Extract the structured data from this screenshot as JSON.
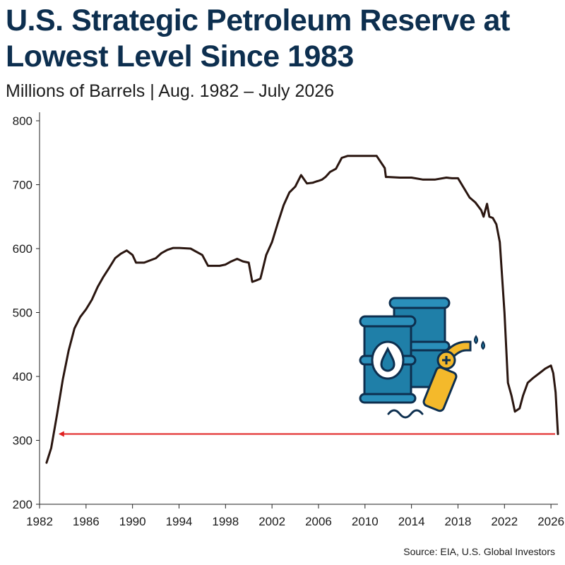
{
  "title": "U.S. Strategic Petroleum Reserve at Lowest Level Since 1983",
  "subtitle": "Millions of Barrels | Aug. 1982 – July 2026",
  "source": "Source: EIA, U.S. Global Investors",
  "colors": {
    "title": "#0d2f4f",
    "line": "#2a1610",
    "arrow": "#e01e1e",
    "icon_blue": "#1f7fa8",
    "icon_yellow": "#f4b92b",
    "icon_outline": "#0d2f4f"
  },
  "icons": [
    "oil-barrels-icon",
    "fuel-nozzle-icon"
  ],
  "chart_data": {
    "type": "line",
    "title": "U.S. Strategic Petroleum Reserve at Lowest Level Since 1983",
    "subtitle": "Millions of Barrels | Aug. 1982 – July 2026",
    "xlabel": "",
    "ylabel": "",
    "xlim": [
      1982,
      2026.6
    ],
    "ylim": [
      200,
      800
    ],
    "x_ticks": [
      1982,
      1986,
      1990,
      1994,
      1998,
      2002,
      2006,
      2010,
      2014,
      2018,
      2022,
      2026
    ],
    "y_ticks": [
      200,
      300,
      400,
      500,
      600,
      700,
      800
    ],
    "grid": false,
    "series": [
      {
        "x": [
          1982.6,
          1983.0,
          1983.5,
          1984.0,
          1984.5,
          1985.0,
          1985.5,
          1986.0,
          1986.5,
          1987.0,
          1987.5,
          1988.0,
          1988.5,
          1989.0,
          1989.5,
          1990.0,
          1990.3,
          1990.5,
          1991.0,
          1992.0,
          1992.5,
          1993.0,
          1993.5,
          1994.0,
          1995.0,
          1996.0,
          1996.5,
          1997.0,
          1997.5,
          1998.0,
          1998.5,
          1999.0,
          1999.5,
          2000.0,
          2000.3,
          2000.6,
          2000.9,
          2001.0,
          2001.1,
          2001.5,
          2002.0,
          2002.5,
          2003.0,
          2003.5,
          2004.0,
          2004.5,
          2005.0,
          2005.5,
          2005.8,
          2006.0,
          2006.3,
          2006.6,
          2007.0,
          2007.5,
          2008.0,
          2008.5,
          2009.0,
          2009.2,
          2009.5,
          2010.0,
          2011.0,
          2011.7,
          2011.8,
          2012.0,
          2013.0,
          2014.0,
          2015.0,
          2016.0,
          2017.0,
          2017.5,
          2018.0,
          2018.5,
          2019.0,
          2019.5,
          2020.0,
          2020.2,
          2020.5,
          2020.7,
          2021.0,
          2021.3,
          2021.6,
          2022.0,
          2022.3,
          2022.6,
          2022.9,
          2023.3,
          2023.6,
          2024.0,
          2024.5,
          2025.0,
          2025.5,
          2026.0,
          2026.2,
          2026.4,
          2026.6
        ],
        "y": [
          265,
          288,
          340,
          395,
          440,
          475,
          493,
          505,
          520,
          540,
          556,
          570,
          585,
          592,
          597,
          590,
          578,
          578,
          578,
          585,
          593,
          598,
          601,
          601,
          600,
          590,
          573,
          573,
          573,
          575,
          580,
          584,
          580,
          578,
          548,
          550,
          552,
          553,
          560,
          590,
          610,
          640,
          668,
          688,
          697,
          715,
          702,
          703,
          705,
          706,
          708,
          712,
          720,
          725,
          742,
          745,
          745,
          745,
          745,
          745,
          745,
          726,
          712,
          712,
          711,
          711,
          708,
          708,
          711,
          710,
          710,
          695,
          680,
          672,
          660,
          650,
          670,
          650,
          648,
          638,
          610,
          500,
          390,
          370,
          345,
          350,
          370,
          390,
          398,
          405,
          412,
          417,
          405,
          375,
          310
        ]
      }
    ],
    "annotation_arrow": {
      "from_x": 2026.6,
      "to_x": 1983.7,
      "y": 310
    }
  }
}
